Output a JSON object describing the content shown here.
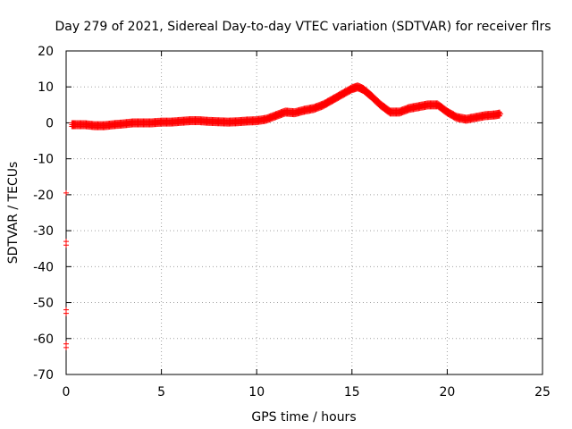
{
  "chart_data": {
    "type": "scatter",
    "title": "Day 279 of 2021, Sidereal Day-to-day VTEC variation (SDTVAR) for receiver flrs",
    "xlabel": "GPS time / hours",
    "ylabel": "SDTVAR / TECUs",
    "xlim": [
      0,
      25
    ],
    "ylim": [
      -70,
      20
    ],
    "xticks": [
      "0",
      "5",
      "10",
      "15",
      "20",
      "25"
    ],
    "yticks": [
      "20",
      "10",
      "0",
      "-10",
      "-20",
      "-30",
      "-40",
      "-50",
      "-60",
      "-70"
    ],
    "grid": true,
    "marker": "plus",
    "color": "#ff0000",
    "series": [
      {
        "x": [
          0.3,
          0.5,
          1.0,
          1.5,
          2.0,
          2.5,
          3.0,
          3.5,
          4.0,
          4.5,
          5.0,
          5.5,
          6.0,
          6.5,
          7.0,
          7.5,
          8.0,
          8.5,
          9.0,
          9.5,
          10.0,
          10.5,
          11.0,
          11.5,
          12.0,
          12.5,
          13.0,
          13.5,
          14.0,
          14.5,
          15.0,
          15.3,
          15.6,
          16.0,
          16.5,
          17.0,
          17.5,
          18.0,
          18.5,
          19.0,
          19.5,
          20.0,
          20.5,
          21.0,
          21.5,
          22.0,
          22.5,
          22.8
        ],
        "y": [
          -0.5,
          -0.5,
          -0.5,
          -0.8,
          -0.8,
          -0.5,
          -0.3,
          0.0,
          0.0,
          0.0,
          0.2,
          0.2,
          0.4,
          0.6,
          0.6,
          0.4,
          0.3,
          0.2,
          0.3,
          0.5,
          0.6,
          1.0,
          2.0,
          3.0,
          2.8,
          3.5,
          4.0,
          5.0,
          6.5,
          8.0,
          9.5,
          10.0,
          9.3,
          7.5,
          5.0,
          3.0,
          3.0,
          4.0,
          4.5,
          5.0,
          5.0,
          3.0,
          1.5,
          1.0,
          1.5,
          2.0,
          2.2,
          2.5
        ]
      },
      {
        "x": [
          0.0,
          0.0,
          0.0,
          0.0,
          0.0,
          0.0,
          0.0
        ],
        "y": [
          -19.5,
          -33.0,
          -34.0,
          -52.0,
          -53.0,
          -61.5,
          -62.5
        ]
      }
    ]
  }
}
